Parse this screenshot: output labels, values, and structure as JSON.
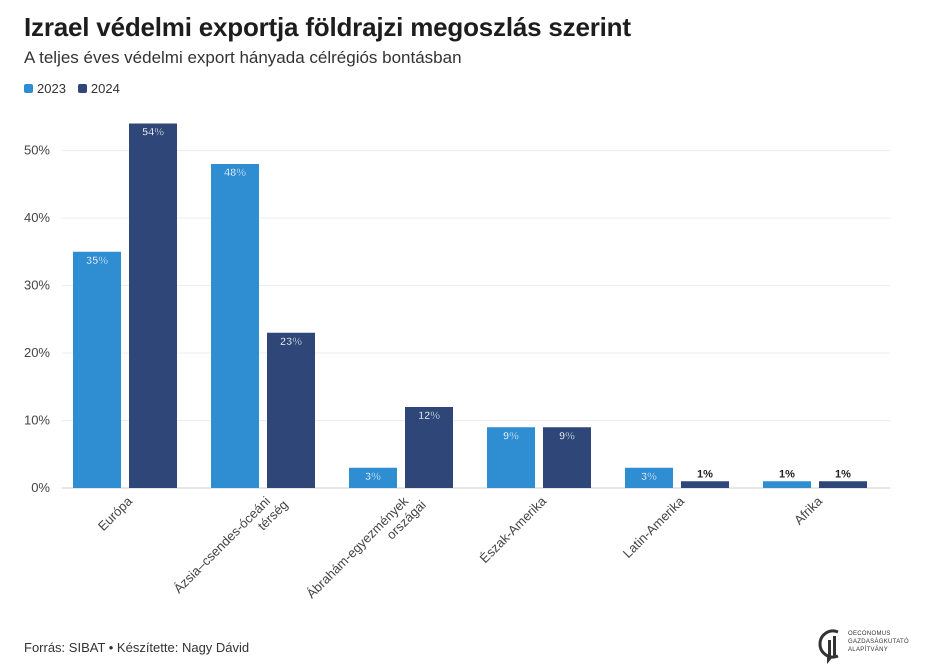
{
  "header": {
    "title": "Izrael védelmi exportja földrajzi megoszlás szerint",
    "subtitle": "A teljes éves védelmi export hányada célrégiós bontásban"
  },
  "footer": {
    "source": "Forrás: SIBAT • Készítette: Nagy Dávid"
  },
  "logo": {
    "line1": "OECONOMUS",
    "line2": "GAZDASÁGKUTATÓ",
    "line3": "ALAPÍTVÁNY"
  },
  "colors": {
    "series_2023": "#2f8dd1",
    "series_2024": "#2e4778"
  },
  "chart_data": {
    "type": "bar",
    "categories": [
      "Európa",
      "Ázsia–csendes-óceáni térség",
      "Ábrahám-egyezmények országai",
      "Észak-Amerika",
      "Latin-Amerika",
      "Afrika"
    ],
    "series": [
      {
        "name": "2023",
        "values": [
          35,
          48,
          3,
          9,
          3,
          1
        ],
        "labels": [
          "35%",
          "48%",
          "3%",
          "9%",
          "3%",
          "1%"
        ]
      },
      {
        "name": "2024",
        "values": [
          54,
          23,
          12,
          9,
          1,
          1
        ],
        "labels": [
          "54%",
          "23%",
          "12%",
          "9%",
          "1%",
          "1%"
        ]
      }
    ],
    "ylim": [
      0,
      55
    ],
    "yticks": [
      0,
      10,
      20,
      30,
      40,
      50
    ],
    "ytick_labels": [
      "0%",
      "10%",
      "20%",
      "30%",
      "40%",
      "50%"
    ],
    "grid": true,
    "legend": "top-left"
  }
}
